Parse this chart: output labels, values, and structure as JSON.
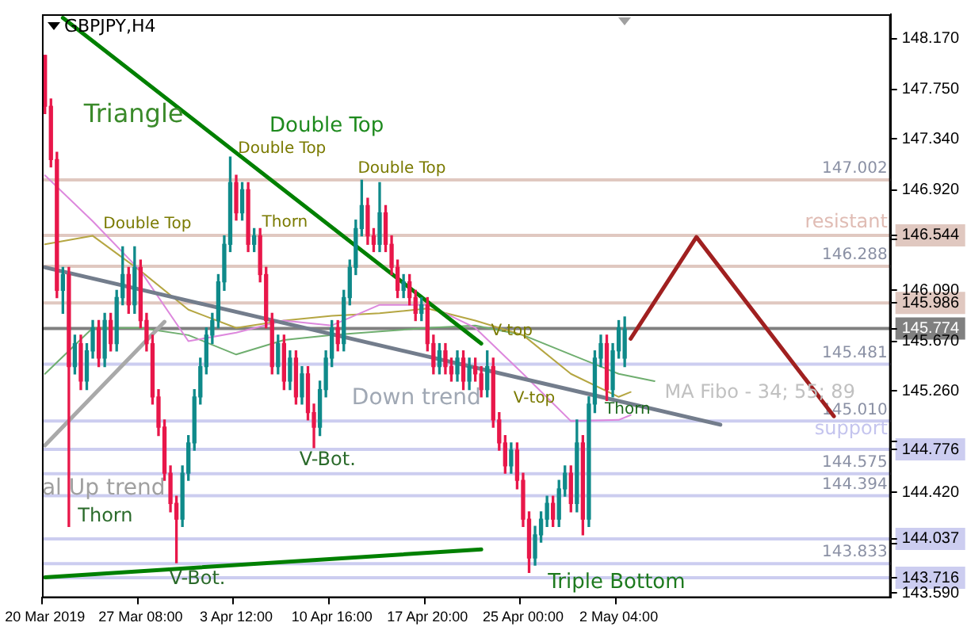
{
  "chart_data": {
    "type": "candlestick",
    "title": "GBPJPY,H4",
    "categories": [
      "20 Mar 2019",
      null,
      null,
      null,
      null,
      null,
      null,
      null,
      null,
      null,
      null,
      null,
      null,
      null,
      null,
      null,
      "27 Mar 08:00",
      null,
      null,
      null,
      null,
      null,
      null,
      null,
      null,
      null,
      null,
      null,
      null,
      null,
      null,
      null,
      "3 Apr 12:00",
      null,
      null,
      null,
      null,
      null,
      null,
      null,
      null,
      null,
      null,
      null,
      null,
      null,
      null,
      null,
      "10 Apr 16:00",
      null,
      null,
      null,
      null,
      null,
      null,
      null,
      null,
      null,
      null,
      null,
      null,
      null,
      null,
      null,
      "17 Apr 20:00",
      null,
      null,
      null,
      null,
      null,
      null,
      null,
      null,
      null,
      null,
      null,
      null,
      null,
      null,
      null,
      "25 Apr 00:00",
      null,
      null,
      null,
      null,
      null,
      null,
      null,
      null,
      null,
      null,
      null,
      null,
      null,
      null,
      null,
      "2 May 04:00",
      null,
      null,
      null,
      null,
      null,
      null,
      null,
      null,
      null,
      null,
      null,
      null,
      null,
      null,
      null,
      null,
      null,
      null,
      null,
      null,
      null,
      null,
      null,
      null,
      null,
      null,
      null,
      null,
      null,
      null,
      null,
      null,
      null,
      null,
      null,
      null,
      null,
      null,
      null,
      null,
      null,
      null,
      null,
      null,
      null
    ],
    "ohlc": [
      [
        148.03,
        148.03,
        147.55,
        147.61
      ],
      [
        147.61,
        147.67,
        147.11,
        147.17
      ],
      [
        147.17,
        147.23,
        146.03,
        146.09
      ],
      [
        146.09,
        146.28,
        145.9,
        146.22
      ],
      [
        146.22,
        146.28,
        144.14,
        145.46
      ],
      [
        145.46,
        145.72,
        145.4,
        145.65
      ],
      [
        145.65,
        145.72,
        145.27,
        145.34
      ],
      [
        145.34,
        145.65,
        145.27,
        145.59
      ],
      [
        145.59,
        145.84,
        145.53,
        145.78
      ],
      [
        145.78,
        145.84,
        145.46,
        145.53
      ],
      [
        145.53,
        145.9,
        145.46,
        145.84
      ],
      [
        145.84,
        145.9,
        145.59,
        145.65
      ],
      [
        145.65,
        146.09,
        145.59,
        146.03
      ],
      [
        146.03,
        146.45,
        145.97,
        146.22
      ],
      [
        146.22,
        146.28,
        145.9,
        145.97
      ],
      [
        145.97,
        146.45,
        145.9,
        146.28
      ],
      [
        146.28,
        146.34,
        145.78,
        145.84
      ],
      [
        145.84,
        145.9,
        145.59,
        145.65
      ],
      [
        145.65,
        145.72,
        145.15,
        145.21
      ],
      [
        145.21,
        145.27,
        144.89,
        144.96
      ],
      [
        144.96,
        145.02,
        144.52,
        144.58
      ],
      [
        144.58,
        144.64,
        144.26,
        144.33
      ],
      [
        144.33,
        144.39,
        143.84,
        144.2
      ],
      [
        144.2,
        144.64,
        144.14,
        144.58
      ],
      [
        144.58,
        144.89,
        144.52,
        144.83
      ],
      [
        144.83,
        145.27,
        144.77,
        145.21
      ],
      [
        145.21,
        145.53,
        145.15,
        145.46
      ],
      [
        145.46,
        145.78,
        145.4,
        145.72
      ],
      [
        145.72,
        145.9,
        145.65,
        145.84
      ],
      [
        145.84,
        146.22,
        145.78,
        146.16
      ],
      [
        146.16,
        146.54,
        146.09,
        146.47
      ],
      [
        146.47,
        147.19,
        146.41,
        146.98
      ],
      [
        146.98,
        147.04,
        146.67,
        146.73
      ],
      [
        146.73,
        146.98,
        146.67,
        146.92
      ],
      [
        146.92,
        146.98,
        146.41,
        146.47
      ],
      [
        146.47,
        146.6,
        146.41,
        146.54
      ],
      [
        146.54,
        146.6,
        146.16,
        146.22
      ],
      [
        146.22,
        146.28,
        145.78,
        145.84
      ],
      [
        145.84,
        145.9,
        145.4,
        145.46
      ],
      [
        145.46,
        145.72,
        145.4,
        145.65
      ],
      [
        145.65,
        145.72,
        145.27,
        145.34
      ],
      [
        145.34,
        145.59,
        145.27,
        145.53
      ],
      [
        145.53,
        145.59,
        145.15,
        145.21
      ],
      [
        145.21,
        145.46,
        145.15,
        145.4
      ],
      [
        145.4,
        145.46,
        145.02,
        145.08
      ],
      [
        145.08,
        145.15,
        144.79,
        144.96
      ],
      [
        144.96,
        145.34,
        144.89,
        145.27
      ],
      [
        145.27,
        145.59,
        145.21,
        145.53
      ],
      [
        145.53,
        145.84,
        145.46,
        145.78
      ],
      [
        145.78,
        145.84,
        145.59,
        145.65
      ],
      [
        145.65,
        146.09,
        145.59,
        146.03
      ],
      [
        146.03,
        146.34,
        145.97,
        146.28
      ],
      [
        146.28,
        146.67,
        146.22,
        146.6
      ],
      [
        146.6,
        147.0,
        146.54,
        146.79
      ],
      [
        146.79,
        146.85,
        146.47,
        146.54
      ],
      [
        146.54,
        146.6,
        146.41,
        146.47
      ],
      [
        146.47,
        146.98,
        146.41,
        146.73
      ],
      [
        146.73,
        146.79,
        146.41,
        146.47
      ],
      [
        146.47,
        146.54,
        146.22,
        146.28
      ],
      [
        146.28,
        146.34,
        146.03,
        146.09
      ],
      [
        146.09,
        146.22,
        146.03,
        146.16
      ],
      [
        146.16,
        146.22,
        145.97,
        146.03
      ],
      [
        146.03,
        146.09,
        145.84,
        145.9
      ],
      [
        145.9,
        146.03,
        145.84,
        145.97
      ],
      [
        145.97,
        146.03,
        145.59,
        145.65
      ],
      [
        145.65,
        145.72,
        145.4,
        145.46
      ],
      [
        145.46,
        145.65,
        145.4,
        145.59
      ],
      [
        145.59,
        145.65,
        145.4,
        145.46
      ],
      [
        145.46,
        145.53,
        145.34,
        145.4
      ],
      [
        145.4,
        145.59,
        145.34,
        145.53
      ],
      [
        145.53,
        145.59,
        145.27,
        145.34
      ],
      [
        145.34,
        145.53,
        145.27,
        145.46
      ],
      [
        145.46,
        145.53,
        145.34,
        145.4
      ],
      [
        145.4,
        145.46,
        145.21,
        145.27
      ],
      [
        145.27,
        145.59,
        145.21,
        145.46
      ],
      [
        145.46,
        145.53,
        144.96,
        145.02
      ],
      [
        145.02,
        145.08,
        144.77,
        144.83
      ],
      [
        144.83,
        144.89,
        144.58,
        144.64
      ],
      [
        144.64,
        144.83,
        144.58,
        144.77
      ],
      [
        144.77,
        144.83,
        144.45,
        144.52
      ],
      [
        144.52,
        144.58,
        144.14,
        144.2
      ],
      [
        144.2,
        144.26,
        143.76,
        143.88
      ],
      [
        143.88,
        144.14,
        143.82,
        144.07
      ],
      [
        144.07,
        144.26,
        144.01,
        144.2
      ],
      [
        144.2,
        144.39,
        144.14,
        144.33
      ],
      [
        144.33,
        144.39,
        144.14,
        144.2
      ],
      [
        144.2,
        144.52,
        144.14,
        144.45
      ],
      [
        144.45,
        144.64,
        144.39,
        144.58
      ],
      [
        144.58,
        144.64,
        144.26,
        144.33
      ],
      [
        144.33,
        145.02,
        144.26,
        144.83
      ],
      [
        144.83,
        144.89,
        144.07,
        144.2
      ],
      [
        144.2,
        145.21,
        144.14,
        145.15
      ],
      [
        145.15,
        145.59,
        145.08,
        145.53
      ],
      [
        145.53,
        145.72,
        145.46,
        145.65
      ],
      [
        145.65,
        145.72,
        145.18,
        145.27
      ],
      [
        145.27,
        145.65,
        145.21,
        145.59
      ],
      [
        145.59,
        145.84,
        145.53,
        145.78
      ],
      [
        145.53,
        145.87,
        145.46,
        145.77
      ],
      null,
      null,
      null,
      null,
      null,
      null,
      null,
      null,
      null,
      null,
      null,
      null,
      null,
      null,
      null,
      null,
      null,
      null,
      null,
      null,
      null,
      null,
      null,
      null,
      null,
      null,
      null,
      null,
      null,
      null,
      null,
      null,
      null,
      null,
      null,
      null,
      null,
      null,
      null,
      null,
      null,
      null,
      null,
      null
    ],
    "colors": [
      "#e8174a",
      "#e8174a",
      "#e8174a",
      "#0f8a8a",
      "#e8174a",
      "#0f8a8a",
      "#e8174a",
      "#0f8a8a",
      "#0f8a8a",
      "#e8174a",
      "#0f8a8a",
      "#e8174a",
      "#0f8a8a",
      "#0f8a8a",
      "#e8174a",
      "#0f8a8a",
      "#e8174a",
      "#e8174a",
      "#e8174a",
      "#e8174a",
      "#e8174a",
      "#e8174a",
      "#e8174a",
      "#0f8a8a",
      "#0f8a8a",
      "#0f8a8a",
      "#0f8a8a",
      "#0f8a8a",
      "#0f8a8a",
      "#0f8a8a",
      "#0f8a8a",
      "#0f8a8a",
      "#e8174a",
      "#0f8a8a",
      "#e8174a",
      "#0f8a8a",
      "#e8174a",
      "#e8174a",
      "#e8174a",
      "#0f8a8a",
      "#e8174a",
      "#0f8a8a",
      "#e8174a",
      "#0f8a8a",
      "#e8174a",
      "#e8174a",
      "#0f8a8a",
      "#0f8a8a",
      "#0f8a8a",
      "#e8174a",
      "#0f8a8a",
      "#0f8a8a",
      "#0f8a8a",
      "#0f8a8a",
      "#e8174a",
      "#e8174a",
      "#0f8a8a",
      "#e8174a",
      "#e8174a",
      "#e8174a",
      "#0f8a8a",
      "#e8174a",
      "#e8174a",
      "#0f8a8a",
      "#e8174a",
      "#e8174a",
      "#0f8a8a",
      "#e8174a",
      "#e8174a",
      "#0f8a8a",
      "#e8174a",
      "#0f8a8a",
      "#e8174a",
      "#e8174a",
      "#0f8a8a",
      "#e8174a",
      "#e8174a",
      "#e8174a",
      "#0f8a8a",
      "#e8174a",
      "#e8174a",
      "#e8174a",
      "#0f8a8a",
      "#0f8a8a",
      "#0f8a8a",
      "#e8174a",
      "#0f8a8a",
      "#0f8a8a",
      "#e8174a",
      "#0f8a8a",
      "#e8174a",
      "#0f8a8a",
      "#0f8a8a",
      "#0f8a8a",
      "#e8174a",
      "#0f8a8a",
      "#0f8a8a",
      "#0f8a8a",
      null,
      null,
      null,
      null,
      null,
      null,
      null,
      null,
      null,
      null,
      null,
      null,
      null,
      null,
      null,
      null,
      null,
      null,
      null,
      null,
      null,
      null,
      null,
      null,
      null,
      null,
      null,
      null,
      null,
      null,
      null,
      null,
      null,
      null,
      null,
      null,
      null,
      null,
      null,
      null,
      null,
      null,
      null,
      null
    ],
    "series": [
      {
        "type": "line",
        "color": "#008000",
        "values": [
          null,
          null,
          null,
          148.34,
          null,
          null,
          null,
          null,
          null,
          null,
          null,
          null,
          null,
          null,
          null,
          null,
          null,
          null,
          null,
          null,
          null,
          null,
          null,
          null,
          null,
          null,
          null,
          null,
          null,
          null,
          null,
          null,
          null,
          null,
          null,
          null,
          null,
          null,
          null,
          null,
          null,
          null,
          null,
          null,
          null,
          null,
          null,
          null,
          null,
          null,
          null,
          null,
          null,
          null,
          null,
          null,
          null,
          null,
          null,
          null,
          null,
          null,
          null,
          null,
          null,
          null,
          null,
          null,
          null,
          null,
          null,
          null,
          null,
          145.65,
          null,
          null,
          null,
          null,
          null,
          null,
          null,
          null,
          null,
          null,
          null,
          null,
          null,
          null,
          null,
          null,
          null,
          null,
          null,
          null,
          null,
          null,
          null,
          null,
          null,
          null,
          null,
          null,
          null,
          null,
          null,
          null,
          null,
          null,
          null,
          null,
          null,
          null,
          null,
          null,
          null,
          null,
          null,
          null,
          null,
          null,
          null,
          null,
          null,
          null,
          null,
          null,
          null,
          null,
          null,
          null,
          null,
          null,
          null,
          null,
          null,
          null,
          null,
          null,
          null,
          null,
          null,
          null
        ]
      },
      {
        "type": "line",
        "color": "#008000",
        "values": [
          143.72,
          null,
          null,
          null,
          null,
          null,
          null,
          null,
          null,
          null,
          null,
          null,
          null,
          null,
          null,
          null,
          null,
          null,
          null,
          null,
          null,
          null,
          null,
          null,
          null,
          null,
          null,
          null,
          null,
          null,
          null,
          null,
          null,
          null,
          null,
          null,
          null,
          null,
          null,
          null,
          null,
          null,
          null,
          null,
          null,
          null,
          null,
          null,
          null,
          null,
          null,
          null,
          null,
          null,
          null,
          null,
          null,
          null,
          null,
          null,
          null,
          null,
          null,
          null,
          null,
          null,
          null,
          null,
          null,
          null,
          null,
          null,
          null,
          143.95,
          null,
          null,
          null,
          null,
          null,
          null,
          null,
          null,
          null,
          null,
          null,
          null,
          null,
          null,
          null,
          null,
          null,
          null,
          null,
          null,
          null,
          null,
          null,
          null,
          null,
          null,
          null,
          null,
          null,
          null,
          null,
          null,
          null,
          null,
          null,
          null,
          null,
          null,
          null,
          null,
          null,
          null,
          null,
          null,
          null,
          null,
          null,
          null,
          null,
          null,
          null,
          null,
          null,
          null,
          null,
          null,
          null,
          null,
          null,
          null,
          null,
          null,
          null,
          null,
          null,
          null,
          null,
          null
        ]
      },
      {
        "type": "line",
        "color": "#737d8c",
        "values": [
          146.28,
          null,
          null,
          null,
          null,
          null,
          null,
          null,
          null,
          null,
          null,
          null,
          null,
          null,
          null,
          null,
          null,
          null,
          null,
          null,
          null,
          null,
          null,
          null,
          null,
          null,
          null,
          null,
          null,
          null,
          null,
          null,
          null,
          null,
          null,
          null,
          null,
          null,
          null,
          null,
          null,
          null,
          null,
          null,
          null,
          null,
          null,
          null,
          null,
          null,
          null,
          null,
          null,
          null,
          null,
          null,
          null,
          null,
          null,
          null,
          null,
          null,
          null,
          null,
          null,
          null,
          null,
          null,
          null,
          null,
          null,
          null,
          null,
          null,
          null,
          null,
          null,
          null,
          null,
          null,
          null,
          null,
          null,
          null,
          null,
          null,
          null,
          null,
          null,
          null,
          null,
          null,
          null,
          null,
          null,
          null,
          null,
          null,
          null,
          null,
          null,
          null,
          null,
          null,
          null,
          null,
          null,
          null,
          null,
          null,
          null,
          null,
          null,
          144.98,
          null,
          null,
          null,
          null,
          null,
          null,
          null,
          null,
          null,
          null,
          null,
          null,
          null,
          null,
          null,
          null,
          null,
          null,
          null,
          null,
          null,
          null,
          null,
          null,
          null,
          null,
          null,
          null
        ]
      },
      {
        "type": "line",
        "color": "#a9a9a9",
        "values": [
          144.81,
          null,
          null,
          null,
          null,
          null,
          null,
          null,
          null,
          null,
          null,
          null,
          null,
          null,
          null,
          null,
          null,
          null,
          null,
          null,
          145.83,
          null,
          null,
          null,
          null,
          null,
          null,
          null,
          null,
          null,
          null,
          null,
          null,
          null,
          null,
          null,
          null,
          null,
          null,
          null,
          null,
          null,
          null,
          null,
          null,
          null,
          null,
          null,
          null,
          null,
          null,
          null,
          null,
          null,
          null,
          null,
          null,
          null,
          null,
          null,
          null,
          null,
          null,
          null,
          null,
          null,
          null,
          null,
          null,
          null,
          null,
          null,
          null,
          null,
          null,
          null,
          null,
          null,
          null,
          null,
          null,
          null,
          null,
          null,
          null,
          null,
          null,
          null,
          null,
          null,
          null,
          null,
          null,
          null,
          null,
          null,
          null,
          null,
          null,
          null,
          null,
          null,
          null,
          null,
          null,
          null,
          null,
          null,
          null,
          null,
          null,
          null,
          null,
          null,
          null,
          null,
          null,
          null,
          null,
          null,
          null,
          null,
          null,
          null,
          null,
          null,
          null,
          null,
          null,
          null,
          null,
          null,
          null,
          null,
          null,
          null,
          null,
          null,
          null,
          null,
          null,
          null
        ]
      },
      {
        "type": "line",
        "color": "#dd88dd",
        "values": [
          147.04,
          null,
          null,
          null,
          null,
          null,
          null,
          null,
          146.66,
          null,
          null,
          null,
          null,
          null,
          null,
          null,
          146.25,
          null,
          null,
          null,
          null,
          null,
          null,
          null,
          145.67,
          null,
          null,
          null,
          null,
          null,
          null,
          null,
          145.74,
          null,
          null,
          null,
          null,
          null,
          null,
          null,
          145.84,
          null,
          null,
          null,
          null,
          null,
          null,
          null,
          145.8,
          null,
          null,
          null,
          null,
          null,
          null,
          null,
          145.97,
          null,
          null,
          null,
          null,
          null,
          null,
          null,
          145.97,
          null,
          null,
          null,
          null,
          null,
          null,
          null,
          145.78,
          null,
          null,
          null,
          null,
          null,
          null,
          null,
          145.4,
          null,
          null,
          null,
          null,
          null,
          null,
          null,
          145.01,
          null,
          null,
          null,
          null,
          null,
          null,
          null,
          145.02,
          null,
          145.06,
          null,
          null,
          null,
          null,
          null,
          null,
          null,
          null,
          null,
          null,
          null,
          null,
          null,
          null,
          null,
          null,
          null,
          null,
          null,
          null,
          null,
          null,
          null,
          null,
          null,
          null,
          null,
          null,
          null,
          null,
          null,
          null,
          null,
          null,
          null,
          null,
          null,
          null,
          null,
          null,
          null,
          null,
          null
        ]
      },
      {
        "type": "line",
        "color": "#b5a642",
        "values": [
          146.47,
          null,
          null,
          null,
          null,
          null,
          null,
          null,
          146.54,
          null,
          null,
          null,
          null,
          null,
          null,
          null,
          146.25,
          null,
          null,
          null,
          null,
          null,
          null,
          null,
          145.93,
          null,
          null,
          null,
          null,
          null,
          null,
          null,
          145.78,
          null,
          null,
          null,
          null,
          null,
          null,
          null,
          145.84,
          null,
          null,
          null,
          null,
          null,
          null,
          null,
          145.88,
          null,
          null,
          null,
          null,
          null,
          null,
          null,
          145.9,
          null,
          null,
          null,
          null,
          null,
          null,
          null,
          145.94,
          null,
          null,
          null,
          null,
          null,
          null,
          null,
          145.84,
          null,
          null,
          null,
          null,
          null,
          null,
          null,
          145.72,
          null,
          null,
          null,
          null,
          null,
          null,
          null,
          145.4,
          null,
          null,
          null,
          null,
          null,
          null,
          null,
          145.21,
          null,
          145.25,
          null,
          null,
          null,
          null,
          null,
          null,
          null,
          null,
          null,
          null,
          null,
          null,
          null,
          null,
          null,
          null,
          null,
          null,
          null,
          null,
          null,
          null,
          null,
          null,
          null,
          null,
          null,
          null,
          null,
          null,
          null,
          null,
          null,
          null,
          null,
          null,
          null,
          null,
          null,
          null,
          null,
          null,
          null
        ]
      },
      {
        "type": "line",
        "color": "#6fae6f",
        "values": [
          145.4,
          null,
          null,
          null,
          null,
          null,
          null,
          null,
          145.78,
          null,
          null,
          null,
          null,
          null,
          null,
          null,
          145.78,
          null,
          null,
          null,
          null,
          null,
          null,
          null,
          145.72,
          null,
          null,
          null,
          null,
          null,
          null,
          null,
          145.56,
          null,
          null,
          null,
          null,
          null,
          null,
          null,
          145.68,
          null,
          null,
          null,
          null,
          null,
          null,
          null,
          145.72,
          null,
          null,
          null,
          null,
          null,
          null,
          null,
          145.75,
          null,
          null,
          null,
          null,
          null,
          null,
          null,
          145.78,
          null,
          null,
          null,
          null,
          null,
          null,
          null,
          145.8,
          null,
          null,
          null,
          null,
          null,
          null,
          null,
          145.72,
          null,
          null,
          null,
          null,
          null,
          null,
          null,
          145.56,
          null,
          null,
          null,
          null,
          null,
          null,
          null,
          145.4,
          null,
          null,
          null,
          null,
          null,
          145.34,
          null,
          null,
          null,
          null,
          null,
          null,
          null,
          null,
          null,
          null,
          null,
          null,
          null,
          null,
          null,
          null,
          null,
          null,
          null,
          null,
          null,
          null,
          null,
          null,
          null,
          null,
          null,
          null,
          null,
          null,
          null,
          null,
          null,
          null,
          null,
          null,
          null,
          null,
          null
        ]
      },
      {
        "type": "line",
        "color": "#a02020",
        "values": [
          null,
          null,
          null,
          null,
          null,
          null,
          null,
          null,
          null,
          null,
          null,
          null,
          null,
          null,
          null,
          null,
          null,
          null,
          null,
          null,
          null,
          null,
          null,
          null,
          null,
          null,
          null,
          null,
          null,
          null,
          null,
          null,
          null,
          null,
          null,
          null,
          null,
          null,
          null,
          null,
          null,
          null,
          null,
          null,
          null,
          null,
          null,
          null,
          null,
          null,
          null,
          null,
          null,
          null,
          null,
          null,
          null,
          null,
          null,
          null,
          null,
          null,
          null,
          null,
          null,
          null,
          null,
          null,
          null,
          null,
          null,
          null,
          null,
          null,
          null,
          null,
          null,
          null,
          null,
          null,
          null,
          null,
          null,
          null,
          null,
          null,
          null,
          null,
          null,
          null,
          null,
          null,
          null,
          null,
          null,
          null,
          null,
          null,
          145.69,
          null,
          null,
          null,
          null,
          null,
          null,
          null,
          null,
          null,
          null,
          146.53,
          null,
          null,
          null,
          null,
          null,
          null,
          null,
          null,
          null,
          null,
          null,
          null,
          null,
          null,
          null,
          null,
          null,
          null,
          null,
          null,
          null,
          null,
          145.05,
          null,
          null,
          null,
          null,
          null,
          null,
          null,
          null,
          null
        ]
      }
    ],
    "ylim": [
      143.55,
      148.37
    ],
    "yticks": [
      {
        "value": 148.17,
        "label": "148.170"
      },
      {
        "value": 147.75,
        "label": "147.750"
      },
      {
        "value": 147.34,
        "label": "147.340"
      },
      {
        "value": 146.92,
        "label": "146.920"
      },
      {
        "value": 146.51,
        "label": null
      },
      {
        "value": 146.544,
        "label": "146.544"
      },
      {
        "value": 146.09,
        "label": "146.090"
      },
      {
        "value": 145.986,
        "label": "145.986"
      },
      {
        "value": 145.774,
        "label": "145.774"
      },
      {
        "value": 145.67,
        "label": "145.670"
      },
      {
        "value": 145.26,
        "label": "145.260"
      },
      {
        "value": 144.84,
        "label": null
      },
      {
        "value": 144.776,
        "label": "144.776"
      },
      {
        "value": 144.42,
        "label": "144.420"
      },
      {
        "value": 144.0,
        "label": null
      },
      {
        "value": 144.037,
        "label": "144.037"
      },
      {
        "value": 143.716,
        "label": "143.716"
      },
      {
        "value": 143.59,
        "label": "143.590"
      }
    ],
    "ref_lines": [
      {
        "axis": "y",
        "value": 147.002,
        "label": "147.002",
        "color": "#e0c8c0"
      },
      {
        "axis": "y",
        "value": 146.544,
        "color": "#e0c8c0"
      },
      {
        "axis": "y",
        "value": 146.288,
        "label": "146.288",
        "color": "#e0c8c0"
      },
      {
        "axis": "y",
        "value": 145.986,
        "color": "#e0c8c0"
      },
      {
        "axis": "y",
        "value": 145.774,
        "color": "#808080"
      },
      {
        "axis": "y",
        "value": 145.481,
        "label": "145.481",
        "color": "#cccdf0"
      },
      {
        "axis": "y",
        "value": 145.01,
        "label": "145.010",
        "color": "#cccdf0"
      },
      {
        "axis": "y",
        "value": 144.776,
        "color": "#cccdf0"
      },
      {
        "axis": "y",
        "value": 144.575,
        "label": "144.575",
        "color": "#cccdf0"
      },
      {
        "axis": "y",
        "value": 144.394,
        "label": "144.394",
        "color": "#cccdf0"
      },
      {
        "axis": "y",
        "value": 144.037,
        "color": "#cccdf0"
      },
      {
        "axis": "y",
        "value": 143.833,
        "label": "143.833",
        "color": "#cccdf0"
      },
      {
        "axis": "y",
        "value": 143.716,
        "color": "#cccdf0"
      }
    ],
    "annotations": [
      "Triangle",
      "Double Top",
      "Double Top",
      "Double Top",
      "Thorn",
      "Double Top",
      "V-top",
      "Down trend",
      "V-top",
      "Thorn",
      "MA Fibo - 34; 55; 89",
      "resistant",
      "support",
      "V-Bot.",
      "al Up trend",
      "Thorn",
      "V-Bot.",
      "Triple Bottom"
    ],
    "marker": "none",
    "grid": false,
    "legend": false
  }
}
